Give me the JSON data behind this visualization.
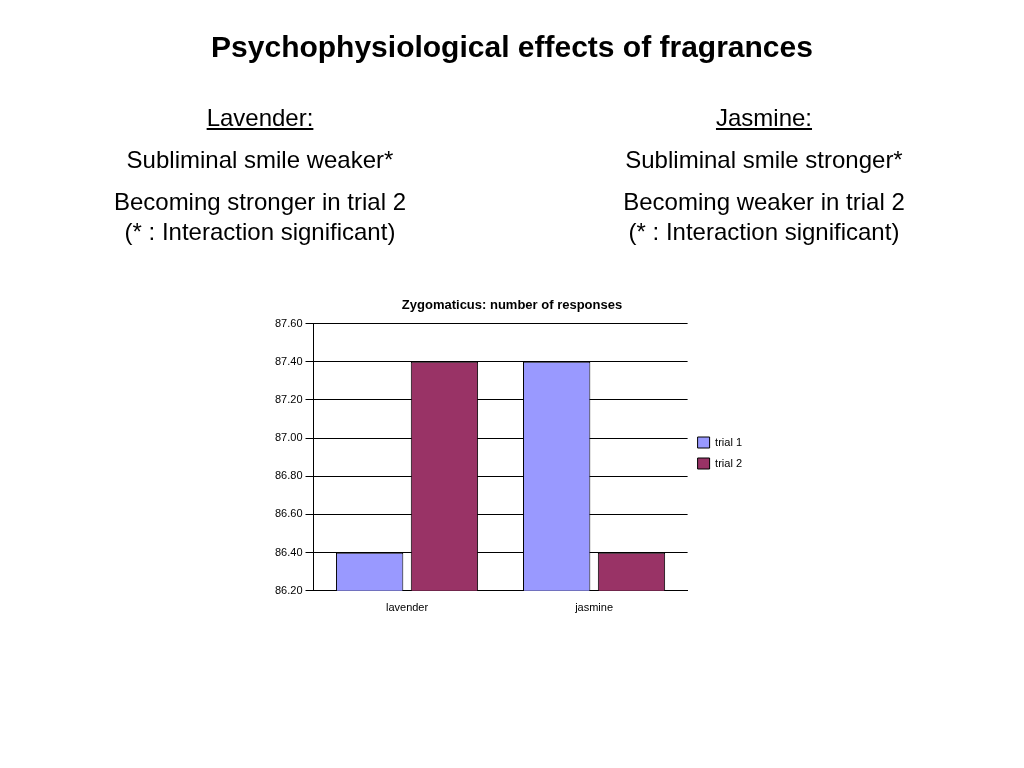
{
  "chart_data": {
    "type": "bar",
    "title": "Psychophysiological effects of fragrances",
    "subtitle": "Zygomaticus: number of responses",
    "annotations": [
      "Lavender:",
      "Subliminal smile weaker*",
      "Becoming stronger in trial 2",
      "(* : Interaction significant)",
      "Jasmine:",
      "Subliminal smile stronger*",
      "Becoming weaker in trial 2",
      "(* : Interaction significant)"
    ],
    "categories": [
      "lavender",
      "jasmine"
    ],
    "series": [
      {
        "name": "trial 1",
        "color": "#9999ff",
        "values": [
          86.4,
          87.4
        ]
      },
      {
        "name": "trial 2",
        "color": "#993366",
        "values": [
          87.4,
          86.4
        ]
      }
    ],
    "ylim": [
      86.2,
      87.6
    ],
    "yticks": [
      {
        "value": 86.2,
        "label": "86.20"
      },
      {
        "value": 86.4,
        "label": "86.40"
      },
      {
        "value": 86.6,
        "label": "86.60"
      },
      {
        "value": 86.8,
        "label": "86.80"
      },
      {
        "value": 87.0,
        "label": "87.00"
      },
      {
        "value": 87.2,
        "label": "87.20"
      },
      {
        "value": 87.4,
        "label": "87.40"
      },
      {
        "value": 87.6,
        "label": "87.60"
      }
    ],
    "grid": "y",
    "legend": "right"
  }
}
